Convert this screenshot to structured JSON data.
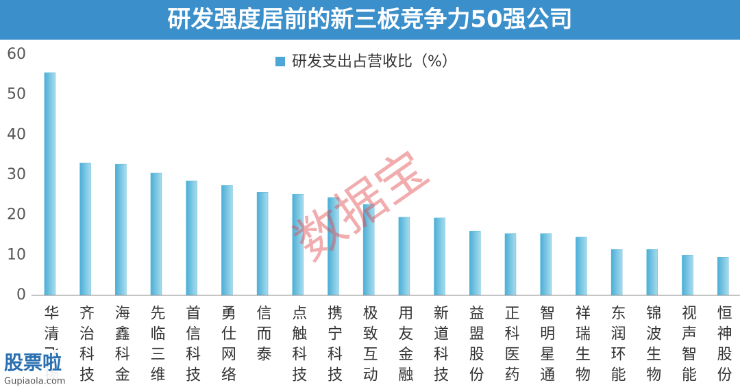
{
  "chart_data": {
    "type": "bar",
    "title": "研发强度居前的新三板竞争力50强公司",
    "legend": "研发支出占营收比（%）",
    "categories": [
      "华清飞扬",
      "齐治科技",
      "海鑫科金",
      "先临三维",
      "首信科技",
      "勇仕网络",
      "信而泰",
      "点触科技",
      "携宁科技",
      "极致互动",
      "用友金融",
      "新道科技",
      "益盟股份",
      "正科医药",
      "智明星通",
      "祥瑞生物",
      "东润环能",
      "锦波生物",
      "视声智能",
      "恒神股份"
    ],
    "values": [
      55.5,
      33,
      32.7,
      30.5,
      28.5,
      27.4,
      25.7,
      25.2,
      24.4,
      22.7,
      19.5,
      19.3,
      16,
      15.4,
      15.4,
      14.5,
      11.5,
      11.5,
      10,
      9.5
    ],
    "color": "#5ab7da",
    "ylim": [
      0,
      60
    ],
    "yticks": [
      0,
      10,
      20,
      30,
      40,
      50,
      60
    ],
    "watermark": "数据宝",
    "logo": "股票啦",
    "logo_url": "Gupiaola.com"
  }
}
